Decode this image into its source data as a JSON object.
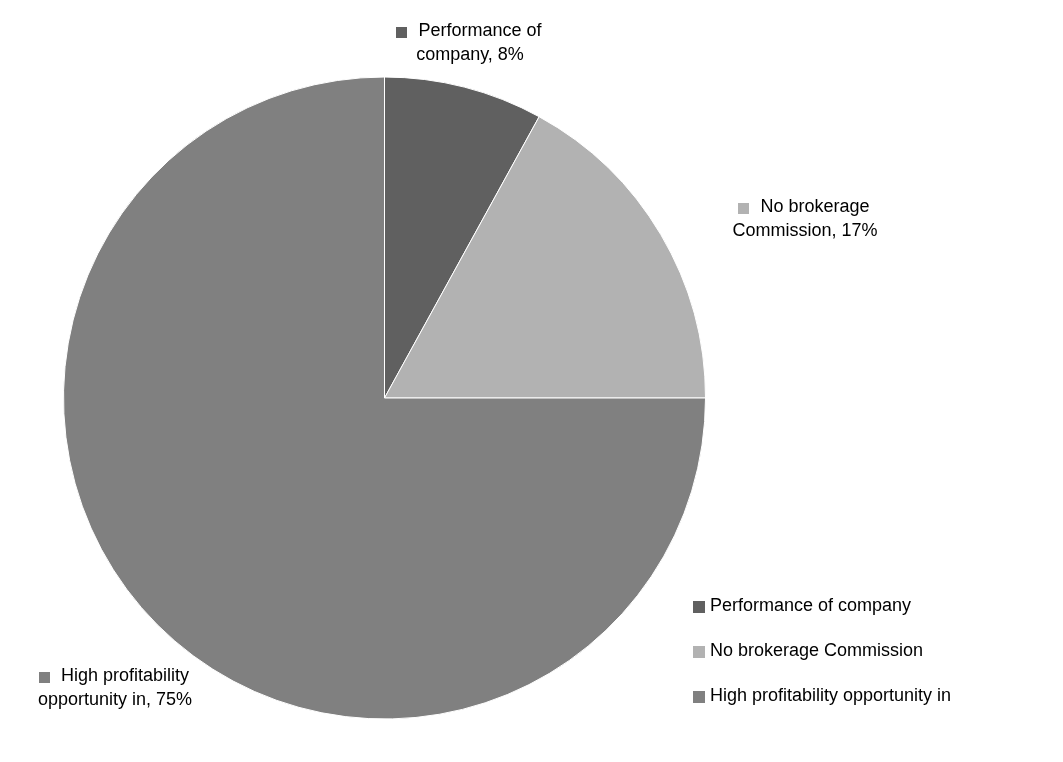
{
  "chart_data": {
    "type": "pie",
    "categories": [
      "Performance of company",
      "No brokerage Commission",
      "High profitability opportunity in"
    ],
    "values": [
      8,
      17,
      75
    ],
    "colors": [
      "#606060",
      "#b2b2b2",
      "#808080"
    ],
    "value_labels": [
      "Performance of company, 8%",
      "No brokerage Commission, 17%",
      "High profitability opportunity in, 75%"
    ],
    "legend": "bottom right"
  }
}
